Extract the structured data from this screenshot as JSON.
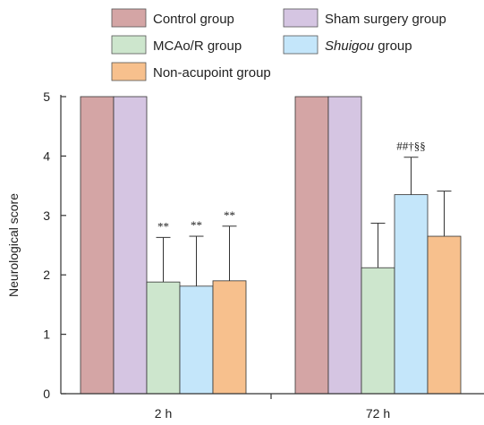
{
  "chart_data": {
    "type": "bar",
    "categories": [
      "2 h",
      "72 h"
    ],
    "ylabel": "Neurological score",
    "xlabel": "",
    "ylim": [
      0,
      5
    ],
    "yticks": [
      0,
      1,
      2,
      3,
      4,
      5
    ],
    "grid": false,
    "legend_position": "top",
    "series": [
      {
        "name": "Control group",
        "values": [
          5,
          5
        ],
        "errors": [
          0,
          0
        ],
        "color": "#d4a5a5",
        "labels": [
          "",
          ""
        ]
      },
      {
        "name": "Sham surgery group",
        "values": [
          5,
          5
        ],
        "errors": [
          0,
          0
        ],
        "color": "#d5c5e2",
        "labels": [
          "",
          ""
        ]
      },
      {
        "name": "MCAo/R group",
        "values": [
          1.88,
          2.12
        ],
        "errors": [
          0.75,
          0.75
        ],
        "color": "#cde6cd",
        "labels": [
          "**",
          ""
        ]
      },
      {
        "name": "Shuigou group",
        "values": [
          1.81,
          3.35
        ],
        "errors": [
          0.84,
          0.63
        ],
        "color": "#c4e6fa",
        "labels": [
          "**",
          "##†§§"
        ],
        "italic": true
      },
      {
        "name": "Non-acupoint group",
        "values": [
          1.9,
          2.65
        ],
        "errors": [
          0.92,
          0.76
        ],
        "color": "#f7c08d",
        "labels": [
          "**",
          ""
        ]
      }
    ]
  }
}
